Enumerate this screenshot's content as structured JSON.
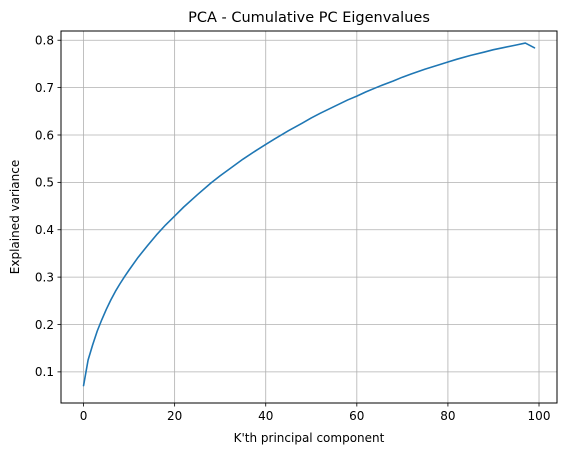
{
  "chart_data": {
    "type": "line",
    "title": "PCA - Cumulative PC Eigenvalues",
    "xlabel": "K'th principal component",
    "ylabel": "Explained variance",
    "xlim": [
      -4.95,
      103.95
    ],
    "ylim": [
      0.0343,
      0.8195
    ],
    "xticks": [
      0,
      20,
      40,
      60,
      80,
      100
    ],
    "yticks": [
      0.1,
      0.2,
      0.3,
      0.4,
      0.5,
      0.6,
      0.7,
      0.8
    ],
    "grid": true,
    "series": [
      {
        "color": "#1f77b4",
        "x": [
          0,
          1,
          2,
          3,
          4,
          5,
          6,
          7,
          8,
          9,
          10,
          12,
          14,
          16,
          18,
          20,
          22,
          25,
          28,
          30,
          32,
          35,
          38,
          40,
          42,
          45,
          48,
          50,
          52,
          55,
          58,
          60,
          62,
          65,
          68,
          70,
          72,
          75,
          78,
          80,
          82,
          85,
          88,
          90,
          92,
          95,
          97,
          99
        ],
        "y": [
          0.071,
          0.125,
          0.157,
          0.186,
          0.21,
          0.232,
          0.252,
          0.27,
          0.286,
          0.301,
          0.315,
          0.342,
          0.366,
          0.389,
          0.41,
          0.429,
          0.448,
          0.474,
          0.499,
          0.514,
          0.528,
          0.549,
          0.568,
          0.58,
          0.592,
          0.609,
          0.625,
          0.636,
          0.646,
          0.66,
          0.674,
          0.682,
          0.691,
          0.703,
          0.714,
          0.722,
          0.729,
          0.739,
          0.748,
          0.754,
          0.76,
          0.768,
          0.775,
          0.78,
          0.784,
          0.79,
          0.794,
          0.784
        ]
      }
    ]
  }
}
